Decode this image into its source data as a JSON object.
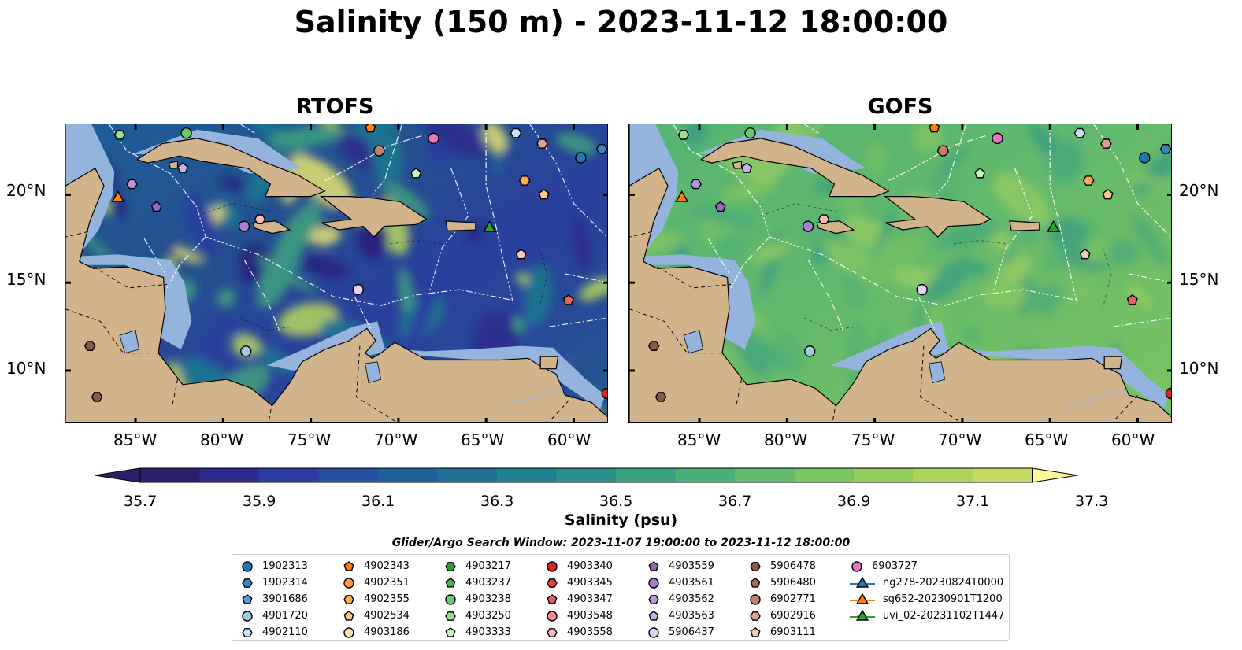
{
  "title": "Salinity (150 m) - 2023-11-12 18:00:00",
  "panels": [
    {
      "title": "RTOFS"
    },
    {
      "title": "GOFS"
    }
  ],
  "lat_ticks": [
    "20°N",
    "15°N",
    "10°N"
  ],
  "lon_ticks": [
    "85°W",
    "80°W",
    "75°W",
    "70°W",
    "65°W",
    "60°W"
  ],
  "colorbar": {
    "labels": [
      "35.7",
      "35.9",
      "36.1",
      "36.3",
      "36.5",
      "36.7",
      "36.9",
      "37.1",
      "37.3"
    ],
    "title": "Salinity (psu)",
    "colors": [
      "#2b1e6b",
      "#2d2a8c",
      "#2c3ca0",
      "#24509f",
      "#1f609b",
      "#1f7094",
      "#21808f",
      "#2a908a",
      "#3aa080",
      "#4eae77",
      "#63b96d",
      "#7bc462",
      "#93cd5c",
      "#acd45b",
      "#c6db62",
      "#e2e26e"
    ]
  },
  "colors": {
    "land": "#d2b48c",
    "shelf": "#94b3dd",
    "deep": "#2a1d6b",
    "river": "#a0b8d8"
  },
  "legend_title": "Glider/Argo Search Window: 2023-11-07 19:00:00 to 2023-11-12 18:00:00",
  "legend": [
    {
      "label": "1902313",
      "shape": "circle",
      "color": "#1f77b4"
    },
    {
      "label": "1902314",
      "shape": "hexagon",
      "color": "#3a82c0"
    },
    {
      "label": "3901686",
      "shape": "pentagon",
      "color": "#5b9bd5"
    },
    {
      "label": "4901720",
      "shape": "circle",
      "color": "#9ecae1"
    },
    {
      "label": "4902110",
      "shape": "hexagon",
      "color": "#c6e2f7"
    },
    {
      "label": "4902343",
      "shape": "pentagon",
      "color": "#ff7f0e"
    },
    {
      "label": "4902351",
      "shape": "circle",
      "color": "#ff9a3c"
    },
    {
      "label": "4902355",
      "shape": "hexagon",
      "color": "#ffaa55"
    },
    {
      "label": "4902534",
      "shape": "pentagon",
      "color": "#ffc68a"
    },
    {
      "label": "4903186",
      "shape": "circle",
      "color": "#ffdcb0"
    },
    {
      "label": "4903217",
      "shape": "hexagon",
      "color": "#2ca02c"
    },
    {
      "label": "4903237",
      "shape": "pentagon",
      "color": "#4cb34c"
    },
    {
      "label": "4903238",
      "shape": "circle",
      "color": "#6cc86c"
    },
    {
      "label": "4903250",
      "shape": "hexagon",
      "color": "#98df8a"
    },
    {
      "label": "4903333",
      "shape": "pentagon",
      "color": "#c7f5c0"
    },
    {
      "label": "4903340",
      "shape": "circle",
      "color": "#d62728"
    },
    {
      "label": "4903345",
      "shape": "hexagon",
      "color": "#e04545"
    },
    {
      "label": "4903347",
      "shape": "pentagon",
      "color": "#e86060"
    },
    {
      "label": "4903548",
      "shape": "circle",
      "color": "#f08b8b"
    },
    {
      "label": "4903558",
      "shape": "hexagon",
      "color": "#f8b8b8"
    },
    {
      "label": "4903559",
      "shape": "pentagon",
      "color": "#9467bd"
    },
    {
      "label": "4903561",
      "shape": "circle",
      "color": "#a67fcf"
    },
    {
      "label": "4903562",
      "shape": "hexagon",
      "color": "#b895db"
    },
    {
      "label": "4903563",
      "shape": "pentagon",
      "color": "#c5b0f0"
    },
    {
      "label": "5906437",
      "shape": "circle",
      "color": "#e3cff8"
    },
    {
      "label": "5906478",
      "shape": "hexagon",
      "color": "#8c564b"
    },
    {
      "label": "5906480",
      "shape": "pentagon",
      "color": "#a56a5d"
    },
    {
      "label": "6902771",
      "shape": "circle",
      "color": "#c0806f"
    },
    {
      "label": "6902916",
      "shape": "hexagon",
      "color": "#e0a090"
    },
    {
      "label": "6903111",
      "shape": "pentagon",
      "color": "#f8c8bc"
    },
    {
      "label": "6903727",
      "shape": "circle",
      "color": "#e377c2"
    },
    {
      "label": "ng278-20230824T0000",
      "shape": "triangle",
      "color": "#1f77b4"
    },
    {
      "label": "sg652-20230901T1200",
      "shape": "triangle",
      "color": "#ff7f0e"
    },
    {
      "label": "uvi_02-20231102T1447",
      "shape": "triangle",
      "color": "#2ca02c"
    }
  ],
  "map_points": [
    {
      "lon": -85.9,
      "lat": 23.4,
      "shape": "hexagon",
      "color": "#98df8a"
    },
    {
      "lon": -82.1,
      "lat": 23.5,
      "shape": "circle",
      "color": "#6cc86c"
    },
    {
      "lon": -82.3,
      "lat": 21.5,
      "shape": "pentagon",
      "color": "#c5b0f0"
    },
    {
      "lon": -85.2,
      "lat": 20.6,
      "shape": "hexagon",
      "color": "#b895db"
    },
    {
      "lon": -86.0,
      "lat": 19.8,
      "shape": "triangle",
      "color": "#ff7f0e"
    },
    {
      "lon": -83.8,
      "lat": 19.3,
      "shape": "pentagon",
      "color": "#9467bd"
    },
    {
      "lon": -71.6,
      "lat": 23.8,
      "shape": "pentagon",
      "color": "#ff7f0e"
    },
    {
      "lon": -71.1,
      "lat": 22.5,
      "shape": "circle",
      "color": "#c0806f"
    },
    {
      "lon": -68.0,
      "lat": 23.2,
      "shape": "circle",
      "color": "#e377c2"
    },
    {
      "lon": -63.3,
      "lat": 23.5,
      "shape": "hexagon",
      "color": "#c6e2f7"
    },
    {
      "lon": -61.8,
      "lat": 22.9,
      "shape": "hexagon",
      "color": "#e0a090"
    },
    {
      "lon": -59.6,
      "lat": 22.1,
      "shape": "circle",
      "color": "#1f77b4"
    },
    {
      "lon": -58.4,
      "lat": 22.6,
      "shape": "hexagon",
      "color": "#3a82c0"
    },
    {
      "lon": -69.0,
      "lat": 21.2,
      "shape": "pentagon",
      "color": "#c7f5c0"
    },
    {
      "lon": -62.8,
      "lat": 20.8,
      "shape": "hexagon",
      "color": "#ffaa55"
    },
    {
      "lon": -61.7,
      "lat": 20.0,
      "shape": "pentagon",
      "color": "#ffc68a"
    },
    {
      "lon": -77.9,
      "lat": 18.6,
      "shape": "hexagon",
      "color": "#f8b8b8"
    },
    {
      "lon": -78.8,
      "lat": 18.2,
      "shape": "circle",
      "color": "#a67fcf"
    },
    {
      "lon": -64.8,
      "lat": 18.1,
      "shape": "triangle",
      "color": "#2ca02c"
    },
    {
      "lon": -63.0,
      "lat": 16.6,
      "shape": "pentagon",
      "color": "#f8c8bc"
    },
    {
      "lon": -72.3,
      "lat": 14.6,
      "shape": "circle",
      "color": "#e3cff8"
    },
    {
      "lon": -60.3,
      "lat": 14.0,
      "shape": "pentagon",
      "color": "#e86060"
    },
    {
      "lon": -78.7,
      "lat": 11.1,
      "shape": "circle",
      "color": "#9ecae1"
    },
    {
      "lon": -87.6,
      "lat": 11.4,
      "shape": "hexagon",
      "color": "#8c564b"
    },
    {
      "lon": -87.2,
      "lat": 8.5,
      "shape": "hexagon",
      "color": "#8c564b"
    },
    {
      "lon": -58.1,
      "lat": 8.7,
      "shape": "circle",
      "color": "#d62728"
    }
  ]
}
